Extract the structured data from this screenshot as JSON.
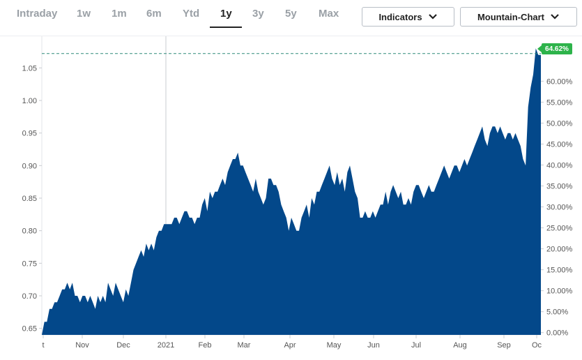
{
  "tabs": [
    {
      "label": "Intraday",
      "active": false
    },
    {
      "label": "1w",
      "active": false
    },
    {
      "label": "1m",
      "active": false
    },
    {
      "label": "6m",
      "active": false
    },
    {
      "label": "Ytd",
      "active": false
    },
    {
      "label": "1y",
      "active": true
    },
    {
      "label": "3y",
      "active": false
    },
    {
      "label": "5y",
      "active": false
    },
    {
      "label": "Max",
      "active": false
    }
  ],
  "indicators_label": "Indicators",
  "charttype_label": "Mountain-Chart",
  "colors": {
    "fill": "#03488a",
    "accent": "#2db34a",
    "refline": "#2f8a7a"
  },
  "chart_data": {
    "type": "area",
    "y_ticks": [
      "1.05",
      "1.00",
      "0.95",
      "0.90",
      "0.85",
      "0.80",
      "0.75",
      "0.70",
      "0.65"
    ],
    "y2_ticks": [
      "60.00%",
      "55.00%",
      "50.00%",
      "45.00%",
      "40.00%",
      "35.00%",
      "30.00%",
      "25.00%",
      "20.00%",
      "15.00%",
      "10.00%",
      "5.00%",
      "0.00%"
    ],
    "x_ticks": [
      "t",
      "Nov",
      "Dec",
      "2021",
      "Feb",
      "Mar",
      "Apr",
      "May",
      "Jun",
      "Jul",
      "Aug",
      "Sep",
      "Oc"
    ],
    "ylim": [
      0.64,
      1.09
    ],
    "last_change_label": "64.62%",
    "reference_value": 1.072,
    "values": [
      0.64,
      0.66,
      0.66,
      0.68,
      0.68,
      0.69,
      0.69,
      0.7,
      0.71,
      0.71,
      0.72,
      0.71,
      0.72,
      0.7,
      0.7,
      0.69,
      0.7,
      0.7,
      0.69,
      0.7,
      0.69,
      0.68,
      0.7,
      0.69,
      0.7,
      0.69,
      0.72,
      0.71,
      0.7,
      0.72,
      0.71,
      0.7,
      0.69,
      0.71,
      0.7,
      0.72,
      0.74,
      0.75,
      0.76,
      0.77,
      0.76,
      0.78,
      0.77,
      0.78,
      0.77,
      0.79,
      0.8,
      0.8,
      0.81,
      0.81,
      0.81,
      0.81,
      0.82,
      0.82,
      0.81,
      0.82,
      0.83,
      0.83,
      0.82,
      0.82,
      0.81,
      0.82,
      0.82,
      0.84,
      0.85,
      0.83,
      0.86,
      0.85,
      0.86,
      0.86,
      0.87,
      0.88,
      0.87,
      0.89,
      0.9,
      0.91,
      0.91,
      0.92,
      0.9,
      0.9,
      0.89,
      0.88,
      0.87,
      0.86,
      0.88,
      0.86,
      0.85,
      0.84,
      0.85,
      0.88,
      0.88,
      0.87,
      0.87,
      0.86,
      0.84,
      0.83,
      0.82,
      0.8,
      0.82,
      0.81,
      0.8,
      0.8,
      0.82,
      0.83,
      0.84,
      0.82,
      0.85,
      0.84,
      0.86,
      0.86,
      0.87,
      0.88,
      0.89,
      0.9,
      0.88,
      0.87,
      0.89,
      0.87,
      0.88,
      0.86,
      0.89,
      0.9,
      0.88,
      0.86,
      0.85,
      0.82,
      0.82,
      0.83,
      0.82,
      0.82,
      0.83,
      0.82,
      0.83,
      0.84,
      0.84,
      0.86,
      0.84,
      0.86,
      0.87,
      0.86,
      0.85,
      0.86,
      0.84,
      0.84,
      0.85,
      0.84,
      0.86,
      0.87,
      0.87,
      0.86,
      0.85,
      0.86,
      0.87,
      0.86,
      0.86,
      0.87,
      0.88,
      0.89,
      0.9,
      0.89,
      0.88,
      0.89,
      0.9,
      0.9,
      0.89,
      0.9,
      0.91,
      0.9,
      0.91,
      0.92,
      0.93,
      0.94,
      0.95,
      0.96,
      0.94,
      0.93,
      0.95,
      0.96,
      0.96,
      0.95,
      0.96,
      0.95,
      0.94,
      0.95,
      0.95,
      0.94,
      0.95,
      0.94,
      0.93,
      0.91,
      0.9,
      0.99,
      1.02,
      1.04,
      1.08,
      1.07,
      1.07
    ]
  }
}
